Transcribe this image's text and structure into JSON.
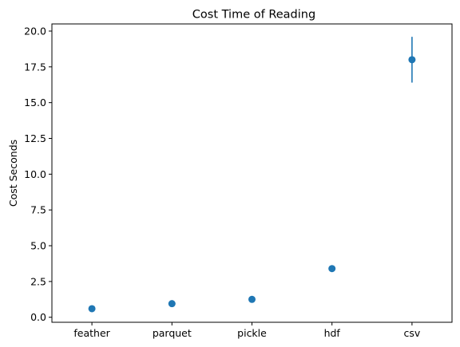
{
  "chart_data": {
    "type": "scatter",
    "title": "Cost Time of Reading",
    "xlabel": "",
    "ylabel": "Cost Seconds",
    "categories": [
      "feather",
      "parquet",
      "pickle",
      "hdf",
      "csv"
    ],
    "values": [
      0.6,
      0.95,
      1.25,
      3.4,
      18.0
    ],
    "error": [
      0.1,
      0.2,
      0.12,
      0.12,
      1.6
    ],
    "yticks": [
      0.0,
      2.5,
      5.0,
      7.5,
      10.0,
      12.5,
      15.0,
      17.5,
      20.0
    ],
    "ytick_labels": [
      "0.0",
      "2.5",
      "5.0",
      "7.5",
      "10.0",
      "12.5",
      "15.0",
      "17.5",
      "20.0"
    ],
    "ylim": [
      -0.35,
      20.5
    ],
    "grid": false,
    "color": "#1f77b4"
  }
}
